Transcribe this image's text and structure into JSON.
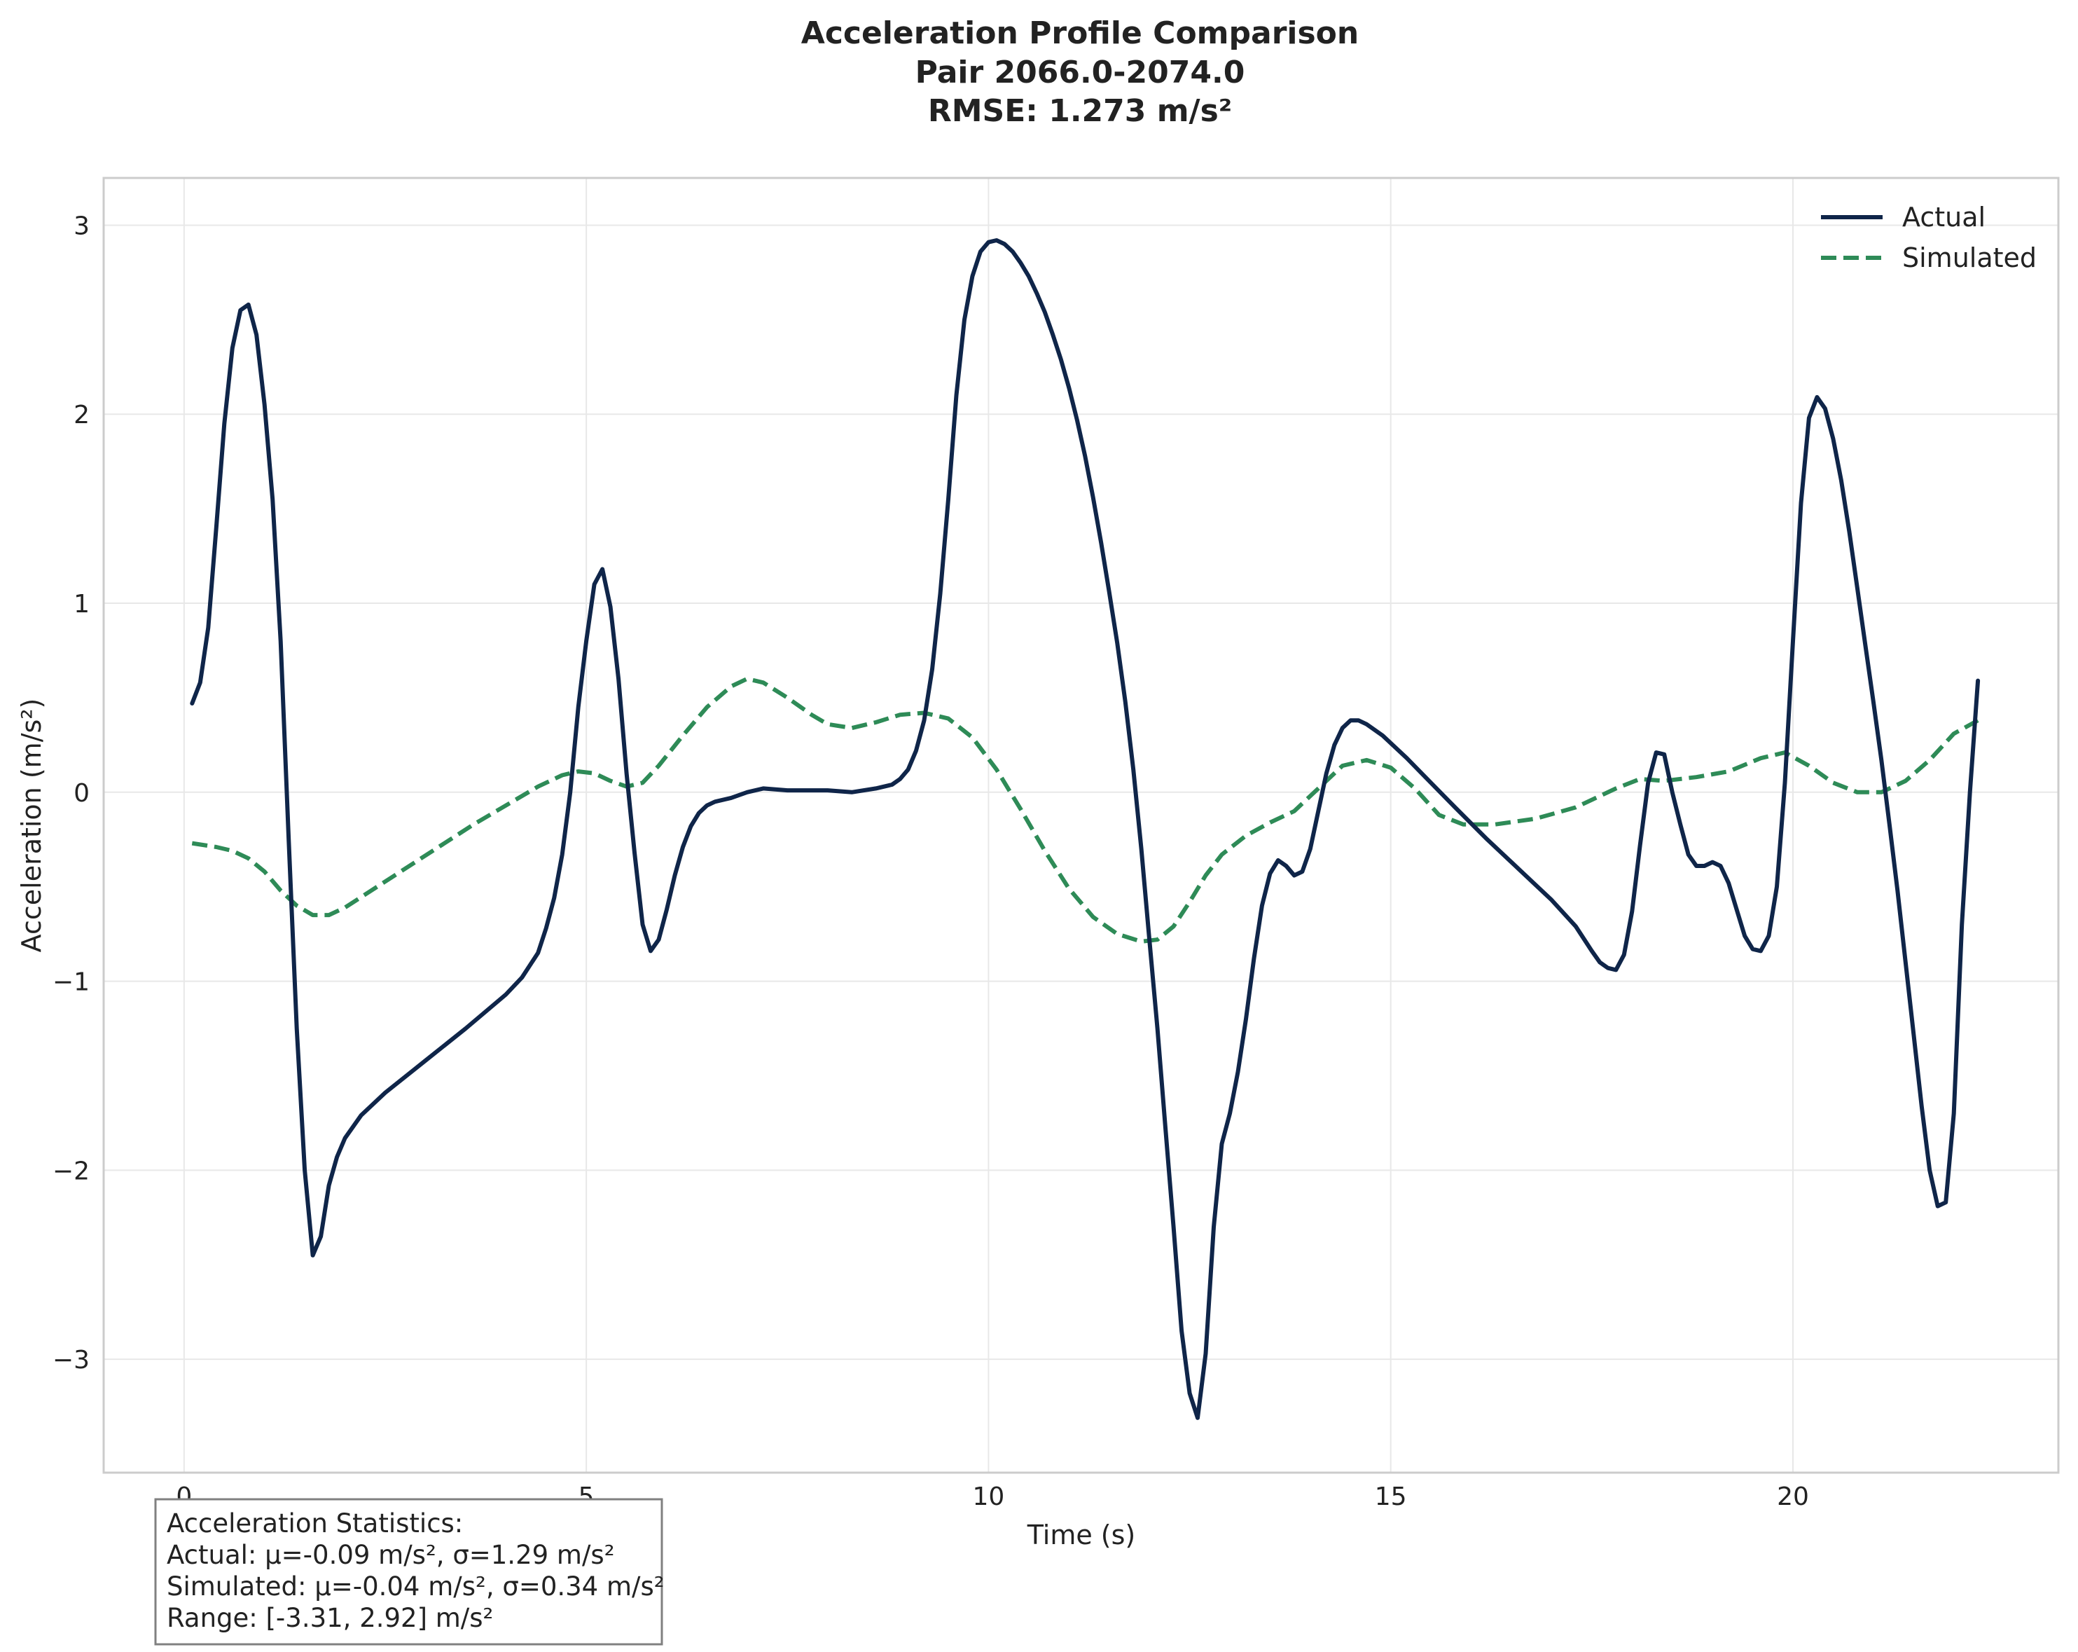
{
  "chart_data": {
    "type": "line",
    "title_lines": [
      "Acceleration Profile Comparison",
      "Pair 2066.0-2074.0",
      "RMSE: 1.273 m/s²"
    ],
    "xlabel": "Time (s)",
    "ylabel": "Acceleration (m/s²)",
    "xlim": [
      -1.0,
      23.3
    ],
    "ylim": [
      -3.6,
      3.25
    ],
    "xticks": [
      0,
      5,
      10,
      15,
      20
    ],
    "xtick_labels": [
      "0",
      "5",
      "10",
      "15",
      "20"
    ],
    "yticks": [
      3,
      2,
      1,
      0,
      -1,
      -2,
      -3
    ],
    "ytick_labels": [
      "3",
      "2",
      "1",
      "0",
      "−1",
      "−2",
      "−3"
    ],
    "grid": true,
    "legend_position": "top-right",
    "series": [
      {
        "name": "Actual",
        "color": "#0f2549",
        "style": "solid",
        "points": [
          [
            0.1,
            0.47
          ],
          [
            0.2,
            0.58
          ],
          [
            0.3,
            0.87
          ],
          [
            0.4,
            1.4
          ],
          [
            0.5,
            1.95
          ],
          [
            0.6,
            2.35
          ],
          [
            0.7,
            2.55
          ],
          [
            0.8,
            2.58
          ],
          [
            0.9,
            2.42
          ],
          [
            1.0,
            2.05
          ],
          [
            1.1,
            1.55
          ],
          [
            1.2,
            0.8
          ],
          [
            1.3,
            -0.25
          ],
          [
            1.4,
            -1.25
          ],
          [
            1.5,
            -2.0
          ],
          [
            1.6,
            -2.45
          ],
          [
            1.7,
            -2.35
          ],
          [
            1.8,
            -2.08
          ],
          [
            1.9,
            -1.93
          ],
          [
            2.0,
            -1.83
          ],
          [
            2.2,
            -1.71
          ],
          [
            2.5,
            -1.59
          ],
          [
            3.0,
            -1.42
          ],
          [
            3.5,
            -1.25
          ],
          [
            4.0,
            -1.07
          ],
          [
            4.2,
            -0.98
          ],
          [
            4.4,
            -0.85
          ],
          [
            4.5,
            -0.72
          ],
          [
            4.6,
            -0.56
          ],
          [
            4.7,
            -0.33
          ],
          [
            4.8,
            0.0
          ],
          [
            4.9,
            0.45
          ],
          [
            5.0,
            0.8
          ],
          [
            5.1,
            1.1
          ],
          [
            5.2,
            1.18
          ],
          [
            5.3,
            0.98
          ],
          [
            5.4,
            0.6
          ],
          [
            5.5,
            0.1
          ],
          [
            5.6,
            -0.32
          ],
          [
            5.7,
            -0.7
          ],
          [
            5.8,
            -0.84
          ],
          [
            5.9,
            -0.78
          ],
          [
            6.0,
            -0.62
          ],
          [
            6.1,
            -0.44
          ],
          [
            6.2,
            -0.29
          ],
          [
            6.3,
            -0.18
          ],
          [
            6.4,
            -0.11
          ],
          [
            6.5,
            -0.07
          ],
          [
            6.6,
            -0.05
          ],
          [
            6.8,
            -0.03
          ],
          [
            7.0,
            0.0
          ],
          [
            7.2,
            0.02
          ],
          [
            7.5,
            0.01
          ],
          [
            8.0,
            0.01
          ],
          [
            8.3,
            0.0
          ],
          [
            8.6,
            0.02
          ],
          [
            8.8,
            0.04
          ],
          [
            8.9,
            0.07
          ],
          [
            9.0,
            0.12
          ],
          [
            9.1,
            0.22
          ],
          [
            9.2,
            0.38
          ],
          [
            9.3,
            0.65
          ],
          [
            9.4,
            1.05
          ],
          [
            9.5,
            1.55
          ],
          [
            9.6,
            2.1
          ],
          [
            9.7,
            2.5
          ],
          [
            9.8,
            2.73
          ],
          [
            9.9,
            2.86
          ],
          [
            10.0,
            2.91
          ],
          [
            10.1,
            2.92
          ],
          [
            10.2,
            2.9
          ],
          [
            10.3,
            2.86
          ],
          [
            10.4,
            2.8
          ],
          [
            10.5,
            2.73
          ],
          [
            10.6,
            2.64
          ],
          [
            10.7,
            2.54
          ],
          [
            10.8,
            2.42
          ],
          [
            10.9,
            2.29
          ],
          [
            11.0,
            2.14
          ],
          [
            11.1,
            1.97
          ],
          [
            11.2,
            1.78
          ],
          [
            11.3,
            1.56
          ],
          [
            11.4,
            1.32
          ],
          [
            11.5,
            1.06
          ],
          [
            11.6,
            0.79
          ],
          [
            11.7,
            0.48
          ],
          [
            11.8,
            0.12
          ],
          [
            11.9,
            -0.3
          ],
          [
            12.0,
            -0.78
          ],
          [
            12.1,
            -1.25
          ],
          [
            12.2,
            -1.78
          ],
          [
            12.3,
            -2.3
          ],
          [
            12.4,
            -2.85
          ],
          [
            12.5,
            -3.18
          ],
          [
            12.6,
            -3.31
          ],
          [
            12.7,
            -2.97
          ],
          [
            12.8,
            -2.3
          ],
          [
            12.9,
            -1.86
          ],
          [
            13.0,
            -1.7
          ],
          [
            13.1,
            -1.48
          ],
          [
            13.2,
            -1.2
          ],
          [
            13.3,
            -0.88
          ],
          [
            13.4,
            -0.6
          ],
          [
            13.5,
            -0.43
          ],
          [
            13.6,
            -0.36
          ],
          [
            13.7,
            -0.39
          ],
          [
            13.8,
            -0.44
          ],
          [
            13.9,
            -0.42
          ],
          [
            14.0,
            -0.3
          ],
          [
            14.1,
            -0.1
          ],
          [
            14.2,
            0.1
          ],
          [
            14.3,
            0.25
          ],
          [
            14.4,
            0.34
          ],
          [
            14.5,
            0.38
          ],
          [
            14.6,
            0.38
          ],
          [
            14.7,
            0.36
          ],
          [
            14.9,
            0.3
          ],
          [
            15.2,
            0.18
          ],
          [
            15.5,
            0.05
          ],
          [
            15.8,
            -0.08
          ],
          [
            16.2,
            -0.25
          ],
          [
            16.6,
            -0.41
          ],
          [
            17.0,
            -0.57
          ],
          [
            17.3,
            -0.71
          ],
          [
            17.5,
            -0.84
          ],
          [
            17.6,
            -0.9
          ],
          [
            17.7,
            -0.93
          ],
          [
            17.8,
            -0.94
          ],
          [
            17.9,
            -0.86
          ],
          [
            18.0,
            -0.63
          ],
          [
            18.1,
            -0.28
          ],
          [
            18.2,
            0.05
          ],
          [
            18.3,
            0.21
          ],
          [
            18.4,
            0.2
          ],
          [
            18.5,
            0.0
          ],
          [
            18.6,
            -0.17
          ],
          [
            18.7,
            -0.33
          ],
          [
            18.8,
            -0.39
          ],
          [
            18.9,
            -0.39
          ],
          [
            19.0,
            -0.37
          ],
          [
            19.1,
            -0.39
          ],
          [
            19.2,
            -0.48
          ],
          [
            19.3,
            -0.62
          ],
          [
            19.4,
            -0.76
          ],
          [
            19.5,
            -0.83
          ],
          [
            19.6,
            -0.84
          ],
          [
            19.7,
            -0.76
          ],
          [
            19.8,
            -0.5
          ],
          [
            19.9,
            0.05
          ],
          [
            20.0,
            0.8
          ],
          [
            20.1,
            1.53
          ],
          [
            20.2,
            1.98
          ],
          [
            20.3,
            2.09
          ],
          [
            20.4,
            2.03
          ],
          [
            20.5,
            1.87
          ],
          [
            20.6,
            1.65
          ],
          [
            20.7,
            1.38
          ],
          [
            20.8,
            1.08
          ],
          [
            20.9,
            0.78
          ],
          [
            21.0,
            0.48
          ],
          [
            21.1,
            0.17
          ],
          [
            21.2,
            -0.17
          ],
          [
            21.3,
            -0.52
          ],
          [
            21.4,
            -0.9
          ],
          [
            21.5,
            -1.28
          ],
          [
            21.6,
            -1.66
          ],
          [
            21.7,
            -2.0
          ],
          [
            21.8,
            -2.19
          ],
          [
            21.9,
            -2.17
          ],
          [
            22.0,
            -1.7
          ],
          [
            22.1,
            -0.7
          ],
          [
            22.2,
            0.0
          ],
          [
            22.3,
            0.59
          ]
        ]
      },
      {
        "name": "Simulated",
        "color": "#2e8b57",
        "style": "dashed",
        "points": [
          [
            0.1,
            -0.27
          ],
          [
            0.4,
            -0.29
          ],
          [
            0.6,
            -0.31
          ],
          [
            0.8,
            -0.35
          ],
          [
            1.0,
            -0.42
          ],
          [
            1.2,
            -0.52
          ],
          [
            1.4,
            -0.6
          ],
          [
            1.6,
            -0.65
          ],
          [
            1.8,
            -0.65
          ],
          [
            2.0,
            -0.61
          ],
          [
            2.4,
            -0.5
          ],
          [
            2.8,
            -0.39
          ],
          [
            3.2,
            -0.28
          ],
          [
            3.6,
            -0.17
          ],
          [
            4.0,
            -0.07
          ],
          [
            4.4,
            0.03
          ],
          [
            4.7,
            0.09
          ],
          [
            4.9,
            0.11
          ],
          [
            5.1,
            0.1
          ],
          [
            5.3,
            0.06
          ],
          [
            5.5,
            0.03
          ],
          [
            5.7,
            0.05
          ],
          [
            5.9,
            0.14
          ],
          [
            6.2,
            0.3
          ],
          [
            6.5,
            0.45
          ],
          [
            6.8,
            0.56
          ],
          [
            7.0,
            0.6
          ],
          [
            7.2,
            0.58
          ],
          [
            7.5,
            0.5
          ],
          [
            7.8,
            0.41
          ],
          [
            8.0,
            0.36
          ],
          [
            8.3,
            0.34
          ],
          [
            8.6,
            0.37
          ],
          [
            8.9,
            0.41
          ],
          [
            9.2,
            0.42
          ],
          [
            9.5,
            0.39
          ],
          [
            9.8,
            0.29
          ],
          [
            10.1,
            0.12
          ],
          [
            10.4,
            -0.09
          ],
          [
            10.7,
            -0.31
          ],
          [
            11.0,
            -0.51
          ],
          [
            11.3,
            -0.66
          ],
          [
            11.6,
            -0.75
          ],
          [
            11.9,
            -0.79
          ],
          [
            12.1,
            -0.78
          ],
          [
            12.3,
            -0.71
          ],
          [
            12.5,
            -0.58
          ],
          [
            12.7,
            -0.44
          ],
          [
            12.9,
            -0.33
          ],
          [
            13.2,
            -0.23
          ],
          [
            13.5,
            -0.16
          ],
          [
            13.8,
            -0.1
          ],
          [
            14.1,
            0.02
          ],
          [
            14.4,
            0.14
          ],
          [
            14.7,
            0.17
          ],
          [
            15.0,
            0.13
          ],
          [
            15.3,
            0.02
          ],
          [
            15.6,
            -0.12
          ],
          [
            15.9,
            -0.17
          ],
          [
            16.3,
            -0.17
          ],
          [
            16.8,
            -0.14
          ],
          [
            17.3,
            -0.08
          ],
          [
            17.8,
            0.02
          ],
          [
            18.1,
            0.07
          ],
          [
            18.4,
            0.06
          ],
          [
            18.8,
            0.08
          ],
          [
            19.2,
            0.11
          ],
          [
            19.6,
            0.18
          ],
          [
            19.9,
            0.21
          ],
          [
            20.2,
            0.14
          ],
          [
            20.5,
            0.05
          ],
          [
            20.8,
            0.0
          ],
          [
            21.1,
            0.0
          ],
          [
            21.4,
            0.06
          ],
          [
            21.7,
            0.17
          ],
          [
            22.0,
            0.31
          ],
          [
            22.3,
            0.38
          ]
        ]
      }
    ],
    "stats_box": {
      "lines": [
        "Acceleration Statistics:",
        "Actual: μ=-0.09 m/s², σ=1.29 m/s²",
        "Simulated: μ=-0.04 m/s², σ=0.34 m/s²",
        "Range: [-3.31, 2.92] m/s²"
      ]
    }
  }
}
